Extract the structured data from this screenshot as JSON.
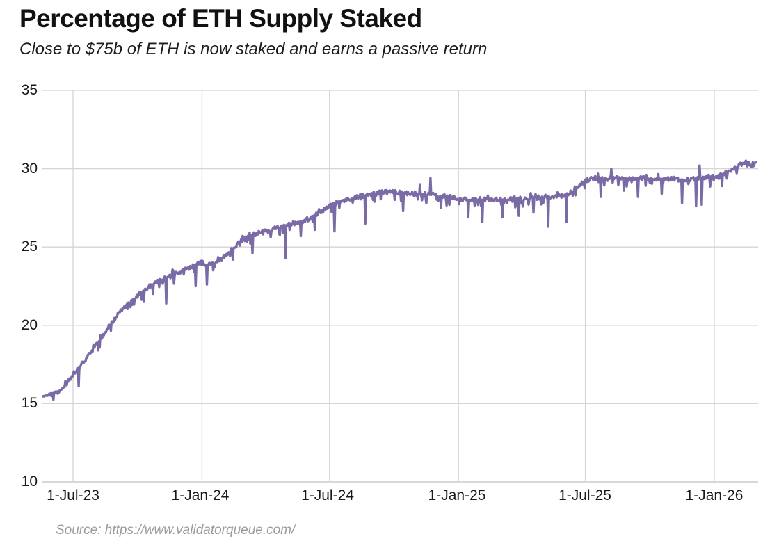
{
  "page": {
    "title": "Percentage of ETH Supply Staked",
    "subtitle": "Close to $75b of ETH is now staked and earns a passive return",
    "source": "Source: https://www.validatorqueue.com/"
  },
  "colors": {
    "line": "#7a6aa5",
    "grid": "#d4d4d4",
    "baseline": "#c0c0c0",
    "axis_text": "#1a1a1a",
    "title_text": "#111111",
    "source_text": "#9b9b9b"
  },
  "chart_data": {
    "type": "line",
    "title": "Percentage of ETH Supply Staked",
    "subtitle": "Close to $75b of ETH is now staked and earns a passive return",
    "source": "Source: https://www.validatorqueue.com/",
    "xlabel": "",
    "ylabel": "",
    "ylim": [
      10,
      35
    ],
    "grid": true,
    "legend": false,
    "y_ticks": [
      35,
      30,
      25,
      20,
      15,
      10
    ],
    "x_tick_labels": [
      "1-Jul-23",
      "1-Jan-24",
      "1-Jul-24",
      "1-Jan-25",
      "1-Jul-25",
      "1-Jan-26"
    ],
    "x_tick_dates": [
      "2023-07-01",
      "2024-01-01",
      "2024-07-01",
      "2025-01-01",
      "2025-07-01",
      "2026-01-01"
    ],
    "x_range": [
      "2023-05-19",
      "2026-03-01"
    ],
    "noise_amplitude": 0.14,
    "series": [
      {
        "name": "% of ETH supply staked",
        "color": "#7a6aa5",
        "anchors": [
          [
            "2023-05-19",
            15.45
          ],
          [
            "2023-05-28",
            15.6
          ],
          [
            "2023-06-08",
            15.75
          ],
          [
            "2023-06-16",
            15.95
          ],
          [
            "2023-06-24",
            16.4
          ],
          [
            "2023-07-01",
            16.9
          ],
          [
            "2023-07-12",
            17.45
          ],
          [
            "2023-07-22",
            18.0
          ],
          [
            "2023-08-01",
            18.6
          ],
          [
            "2023-08-12",
            19.3
          ],
          [
            "2023-08-22",
            20.0
          ],
          [
            "2023-09-01",
            20.6
          ],
          [
            "2023-09-12",
            21.1
          ],
          [
            "2023-09-22",
            21.5
          ],
          [
            "2023-10-01",
            21.9
          ],
          [
            "2023-10-12",
            22.3
          ],
          [
            "2023-10-22",
            22.6
          ],
          [
            "2023-11-01",
            22.85
          ],
          [
            "2023-11-12",
            23.05
          ],
          [
            "2023-11-22",
            23.25
          ],
          [
            "2023-12-01",
            23.45
          ],
          [
            "2023-12-12",
            23.65
          ],
          [
            "2023-12-22",
            23.85
          ],
          [
            "2024-01-01",
            24.0
          ],
          [
            "2024-01-08",
            23.8
          ],
          [
            "2024-01-16",
            23.95
          ],
          [
            "2024-02-01",
            24.35
          ],
          [
            "2024-02-12",
            24.8
          ],
          [
            "2024-02-22",
            25.25
          ],
          [
            "2024-03-01",
            25.5
          ],
          [
            "2024-03-12",
            25.75
          ],
          [
            "2024-03-22",
            25.9
          ],
          [
            "2024-04-01",
            26.0
          ],
          [
            "2024-04-16",
            26.2
          ],
          [
            "2024-05-01",
            26.4
          ],
          [
            "2024-05-16",
            26.55
          ],
          [
            "2024-06-01",
            26.8
          ],
          [
            "2024-06-16",
            27.15
          ],
          [
            "2024-07-01",
            27.6
          ],
          [
            "2024-07-16",
            27.95
          ],
          [
            "2024-08-01",
            28.1
          ],
          [
            "2024-08-16",
            28.25
          ],
          [
            "2024-09-01",
            28.4
          ],
          [
            "2024-09-16",
            28.5
          ],
          [
            "2024-10-01",
            28.5
          ],
          [
            "2024-10-16",
            28.45
          ],
          [
            "2024-11-01",
            28.4
          ],
          [
            "2024-11-16",
            28.35
          ],
          [
            "2024-12-01",
            28.3
          ],
          [
            "2024-12-16",
            28.2
          ],
          [
            "2025-01-01",
            28.1
          ],
          [
            "2025-01-16",
            28.0
          ],
          [
            "2025-02-01",
            28.0
          ],
          [
            "2025-02-16",
            28.05
          ],
          [
            "2025-03-01",
            28.0
          ],
          [
            "2025-03-16",
            28.1
          ],
          [
            "2025-04-01",
            28.1
          ],
          [
            "2025-04-16",
            28.15
          ],
          [
            "2025-05-01",
            28.2
          ],
          [
            "2025-05-16",
            28.25
          ],
          [
            "2025-06-01",
            28.35
          ],
          [
            "2025-06-12",
            28.55
          ],
          [
            "2025-06-22",
            28.95
          ],
          [
            "2025-07-01",
            29.2
          ],
          [
            "2025-07-12",
            29.4
          ],
          [
            "2025-08-01",
            29.35
          ],
          [
            "2025-08-16",
            29.4
          ],
          [
            "2025-09-01",
            29.35
          ],
          [
            "2025-09-16",
            29.4
          ],
          [
            "2025-10-01",
            29.4
          ],
          [
            "2025-10-16",
            29.35
          ],
          [
            "2025-11-01",
            29.35
          ],
          [
            "2025-11-16",
            29.3
          ],
          [
            "2025-12-01",
            29.35
          ],
          [
            "2025-12-20",
            29.45
          ],
          [
            "2026-01-01",
            29.5
          ],
          [
            "2026-01-12",
            29.6
          ],
          [
            "2026-01-22",
            29.85
          ],
          [
            "2026-02-01",
            30.1
          ],
          [
            "2026-02-10",
            30.3
          ],
          [
            "2026-02-17",
            30.5
          ],
          [
            "2026-02-22",
            30.15
          ],
          [
            "2026-03-01",
            30.4
          ]
        ],
        "dips": [
          [
            "2023-06-03",
            15.25
          ],
          [
            "2023-07-09",
            16.1
          ],
          [
            "2023-08-06",
            18.4
          ],
          [
            "2023-10-10",
            21.5
          ],
          [
            "2023-11-11",
            21.4
          ],
          [
            "2023-12-23",
            22.5
          ],
          [
            "2024-01-08",
            22.6
          ],
          [
            "2024-02-14",
            24.2
          ],
          [
            "2024-03-13",
            24.6
          ],
          [
            "2024-04-29",
            24.3
          ],
          [
            "2024-05-21",
            25.7
          ],
          [
            "2024-06-10",
            26.1
          ],
          [
            "2024-07-08",
            26.0
          ],
          [
            "2024-08-21",
            26.5
          ],
          [
            "2024-10-14",
            27.3
          ],
          [
            "2024-12-07",
            27.5
          ],
          [
            "2025-01-15",
            26.9
          ],
          [
            "2025-02-04",
            26.6
          ],
          [
            "2025-03-05",
            26.9
          ],
          [
            "2025-03-28",
            27.0
          ],
          [
            "2025-04-18",
            27.2
          ],
          [
            "2025-05-09",
            26.3
          ],
          [
            "2025-06-04",
            26.6
          ],
          [
            "2025-07-23",
            28.2
          ],
          [
            "2025-08-25",
            28.6
          ],
          [
            "2025-09-14",
            28.2
          ],
          [
            "2025-10-18",
            28.4
          ],
          [
            "2025-11-16",
            27.8
          ],
          [
            "2025-12-06",
            27.6
          ],
          [
            "2025-12-14",
            27.7
          ],
          [
            "2026-01-12",
            28.9
          ]
        ],
        "spikes": [
          [
            "2024-11-07",
            29.0
          ],
          [
            "2024-11-22",
            29.4
          ],
          [
            "2025-08-07",
            30.0
          ],
          [
            "2025-12-11",
            30.2
          ]
        ]
      }
    ]
  }
}
